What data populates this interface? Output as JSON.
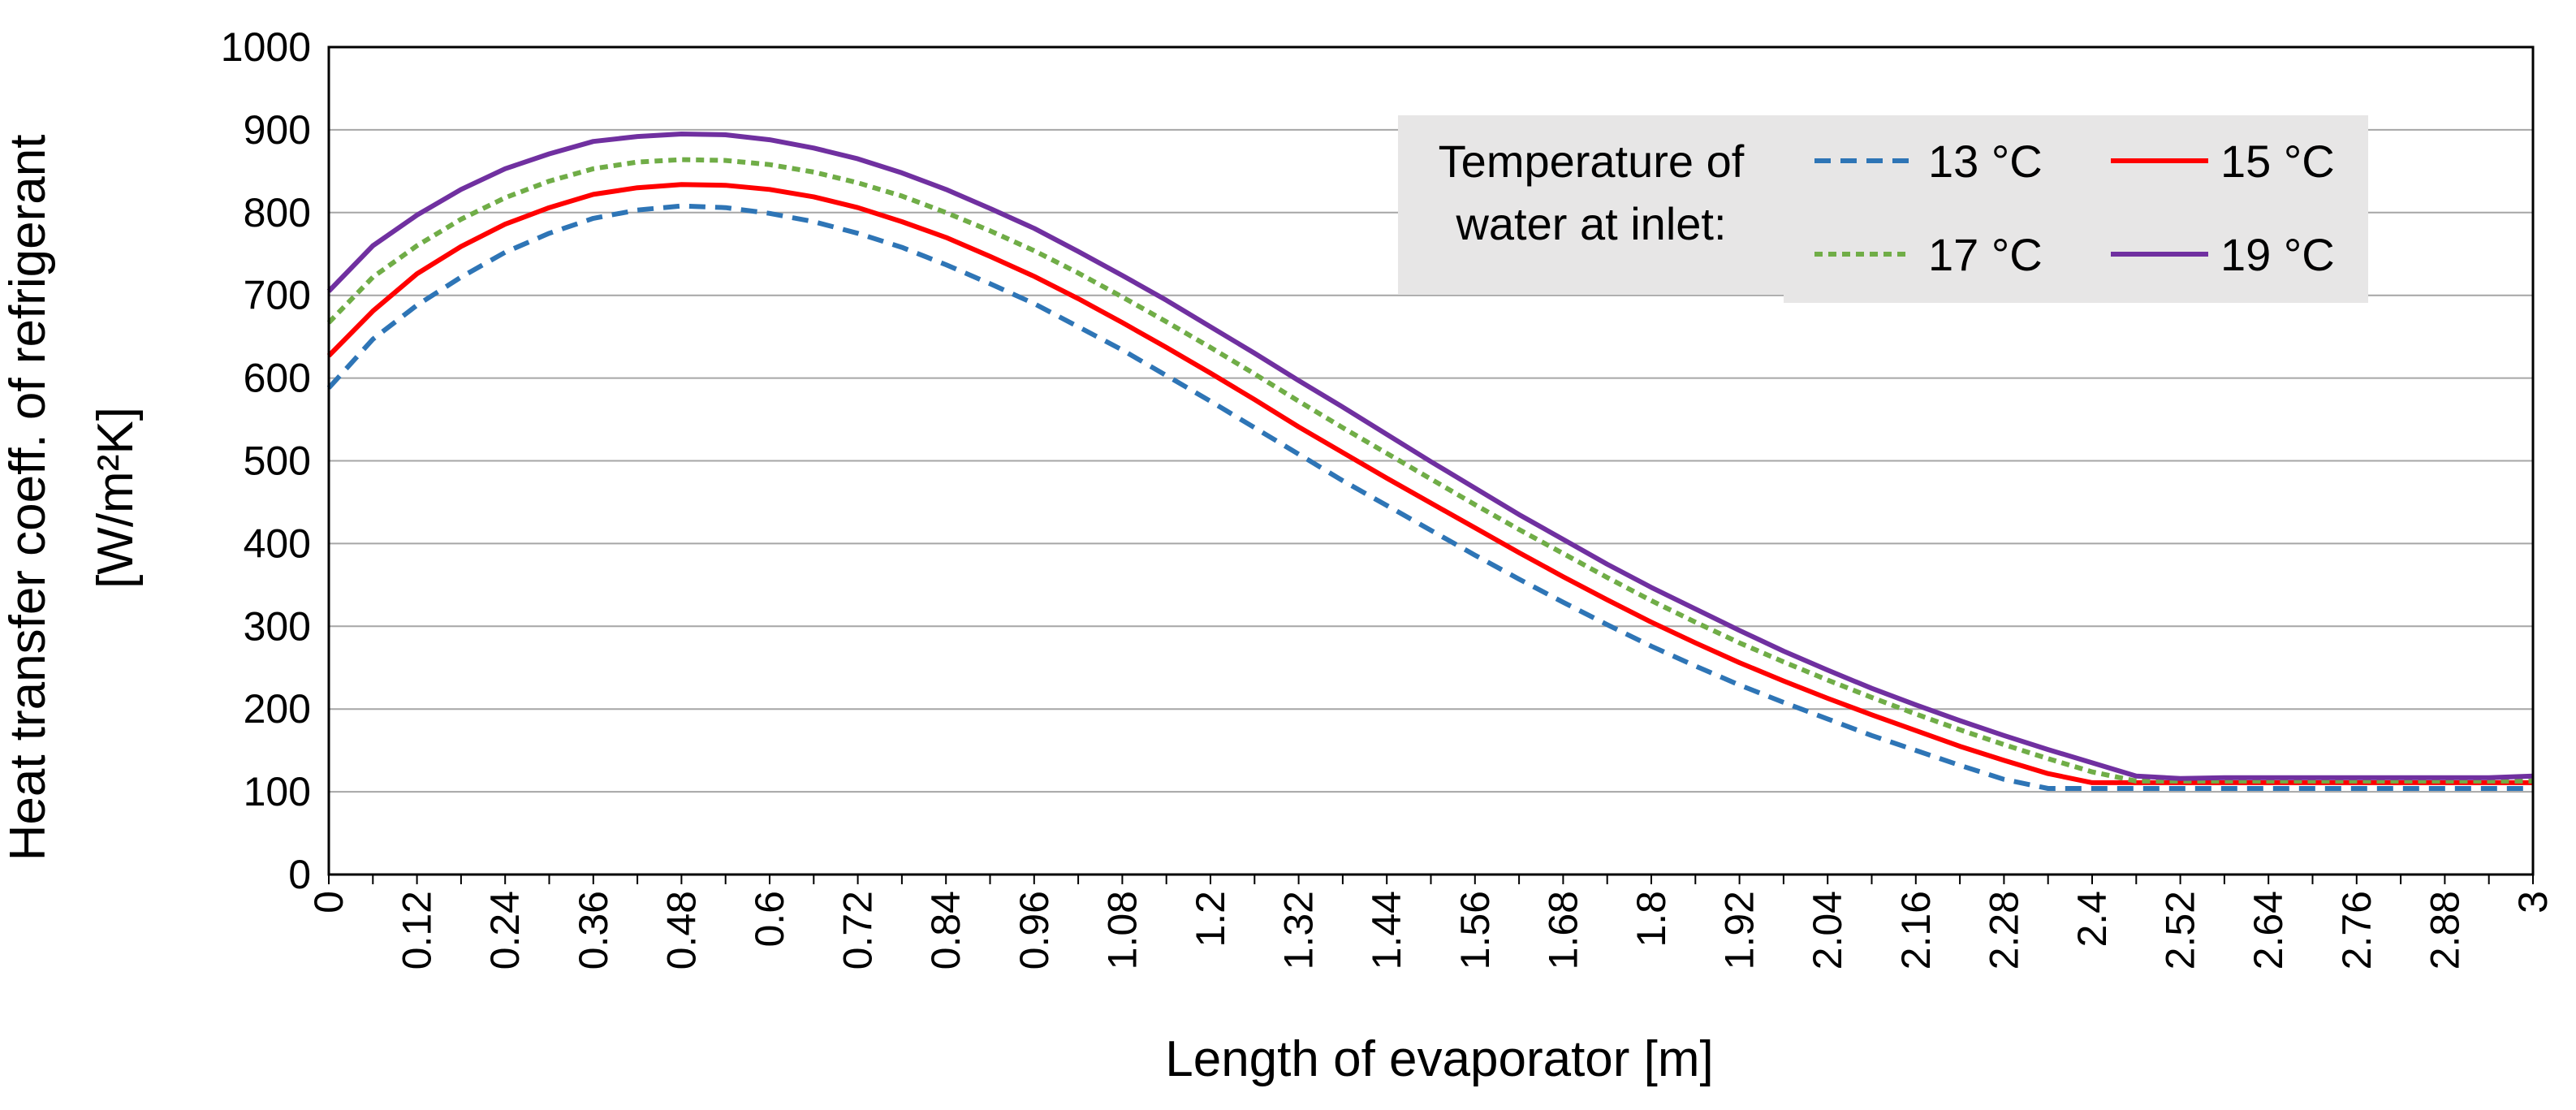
{
  "chart_data": {
    "type": "line",
    "xlabel": "Length of evaporator [m]",
    "ylabel": [
      "Heat transfer coeff. of refrigerant",
      "[W/m²K]"
    ],
    "xlim": [
      0,
      3
    ],
    "ylim": [
      0,
      1000
    ],
    "grid": true,
    "x_tick_labels": [
      "0",
      "0.12",
      "0.24",
      "0.36",
      "0.48",
      "0.6",
      "0.72",
      "0.84",
      "0.96",
      "1.08",
      "1.2",
      "1.32",
      "1.44",
      "1.56",
      "1.68",
      "1.8",
      "1.92",
      "2.04",
      "2.16",
      "2.28",
      "2.4",
      "2.52",
      "2.64",
      "2.76",
      "2.88",
      "3"
    ],
    "y_ticks": [
      0,
      100,
      200,
      300,
      400,
      500,
      600,
      700,
      800,
      900,
      1000
    ],
    "legend": {
      "title_lines": [
        "Temperature of",
        "water at inlet:"
      ],
      "position": "top-right"
    },
    "series": [
      {
        "name": "13 °C",
        "color": "#2E75B6",
        "style": "dashed",
        "x": [
          0,
          0.06,
          0.12,
          0.18,
          0.24,
          0.3,
          0.36,
          0.42,
          0.48,
          0.54,
          0.6,
          0.66,
          0.72,
          0.78,
          0.84,
          0.9,
          0.96,
          1.02,
          1.08,
          1.14,
          1.2,
          1.26,
          1.32,
          1.38,
          1.44,
          1.5,
          1.56,
          1.62,
          1.68,
          1.74,
          1.8,
          1.86,
          1.92,
          1.98,
          2.04,
          2.1,
          2.16,
          2.22,
          2.28,
          2.34,
          2.4,
          2.46,
          2.52,
          2.58,
          2.64,
          2.7,
          2.76,
          2.82,
          2.88,
          2.94,
          3.0
        ],
        "y": [
          588,
          647,
          688,
          722,
          752,
          775,
          793,
          803,
          808,
          806,
          799,
          789,
          775,
          758,
          737,
          714,
          690,
          662,
          634,
          603,
          572,
          540,
          508,
          476,
          446,
          416,
          386,
          357,
          329,
          302,
          276,
          252,
          229,
          208,
          188,
          168,
          150,
          132,
          115,
          104,
          104,
          104,
          104,
          104,
          104,
          104,
          104,
          104,
          104,
          104,
          104
        ]
      },
      {
        "name": "15 °C",
        "color": "#FF0000",
        "style": "solid",
        "x": [
          0,
          0.06,
          0.12,
          0.18,
          0.24,
          0.3,
          0.36,
          0.42,
          0.48,
          0.54,
          0.6,
          0.66,
          0.72,
          0.78,
          0.84,
          0.9,
          0.96,
          1.02,
          1.08,
          1.14,
          1.2,
          1.26,
          1.32,
          1.38,
          1.44,
          1.5,
          1.56,
          1.62,
          1.68,
          1.74,
          1.8,
          1.86,
          1.92,
          1.98,
          2.04,
          2.1,
          2.16,
          2.22,
          2.28,
          2.34,
          2.4,
          2.46,
          2.52,
          2.58,
          2.64,
          2.7,
          2.76,
          2.82,
          2.88,
          2.94,
          3.0
        ],
        "y": [
          627,
          681,
          726,
          759,
          786,
          806,
          822,
          830,
          834,
          833,
          828,
          819,
          806,
          789,
          770,
          747,
          723,
          696,
          667,
          637,
          606,
          574,
          541,
          510,
          479,
          449,
          419,
          389,
          360,
          332,
          305,
          280,
          256,
          234,
          213,
          193,
          174,
          155,
          138,
          122,
          111,
          111,
          111,
          111,
          111,
          111,
          111,
          111,
          111,
          111,
          111
        ]
      },
      {
        "name": "17 °C",
        "color": "#70AD47",
        "style": "dashed",
        "x": [
          0,
          0.06,
          0.12,
          0.18,
          0.24,
          0.3,
          0.36,
          0.42,
          0.48,
          0.54,
          0.6,
          0.66,
          0.72,
          0.78,
          0.84,
          0.9,
          0.96,
          1.02,
          1.08,
          1.14,
          1.2,
          1.26,
          1.32,
          1.38,
          1.44,
          1.5,
          1.56,
          1.62,
          1.68,
          1.74,
          1.8,
          1.86,
          1.92,
          1.98,
          2.04,
          2.1,
          2.16,
          2.22,
          2.28,
          2.34,
          2.4,
          2.46,
          2.52,
          2.58,
          2.64,
          2.7,
          2.76,
          2.82,
          2.88,
          2.94,
          3.0
        ],
        "y": [
          667,
          722,
          760,
          792,
          818,
          838,
          853,
          861,
          864,
          863,
          858,
          849,
          836,
          820,
          800,
          778,
          754,
          727,
          698,
          668,
          637,
          605,
          572,
          540,
          509,
          478,
          447,
          417,
          388,
          359,
          331,
          305,
          280,
          257,
          235,
          214,
          194,
          175,
          157,
          140,
          124,
          113,
          113,
          113,
          113,
          113,
          113,
          113,
          113,
          113,
          113
        ]
      },
      {
        "name": "19 °C",
        "color": "#7030A0",
        "style": "solid",
        "x": [
          0,
          0.06,
          0.12,
          0.18,
          0.24,
          0.3,
          0.36,
          0.42,
          0.48,
          0.54,
          0.6,
          0.66,
          0.72,
          0.78,
          0.84,
          0.9,
          0.96,
          1.02,
          1.08,
          1.14,
          1.2,
          1.26,
          1.32,
          1.38,
          1.44,
          1.5,
          1.56,
          1.62,
          1.68,
          1.74,
          1.8,
          1.86,
          1.92,
          1.98,
          2.04,
          2.1,
          2.16,
          2.22,
          2.28,
          2.34,
          2.4,
          2.46,
          2.52,
          2.58,
          2.64,
          2.7,
          2.76,
          2.82,
          2.88,
          2.94,
          3.0
        ],
        "y": [
          705,
          760,
          797,
          828,
          853,
          871,
          886,
          892,
          895,
          894,
          888,
          878,
          865,
          848,
          828,
          805,
          781,
          753,
          724,
          694,
          662,
          630,
          597,
          565,
          532,
          499,
          467,
          435,
          405,
          375,
          347,
          321,
          295,
          270,
          247,
          225,
          205,
          186,
          168,
          151,
          135,
          119,
          116,
          117,
          117,
          117,
          117,
          117,
          117,
          117,
          119
        ]
      }
    ]
  }
}
